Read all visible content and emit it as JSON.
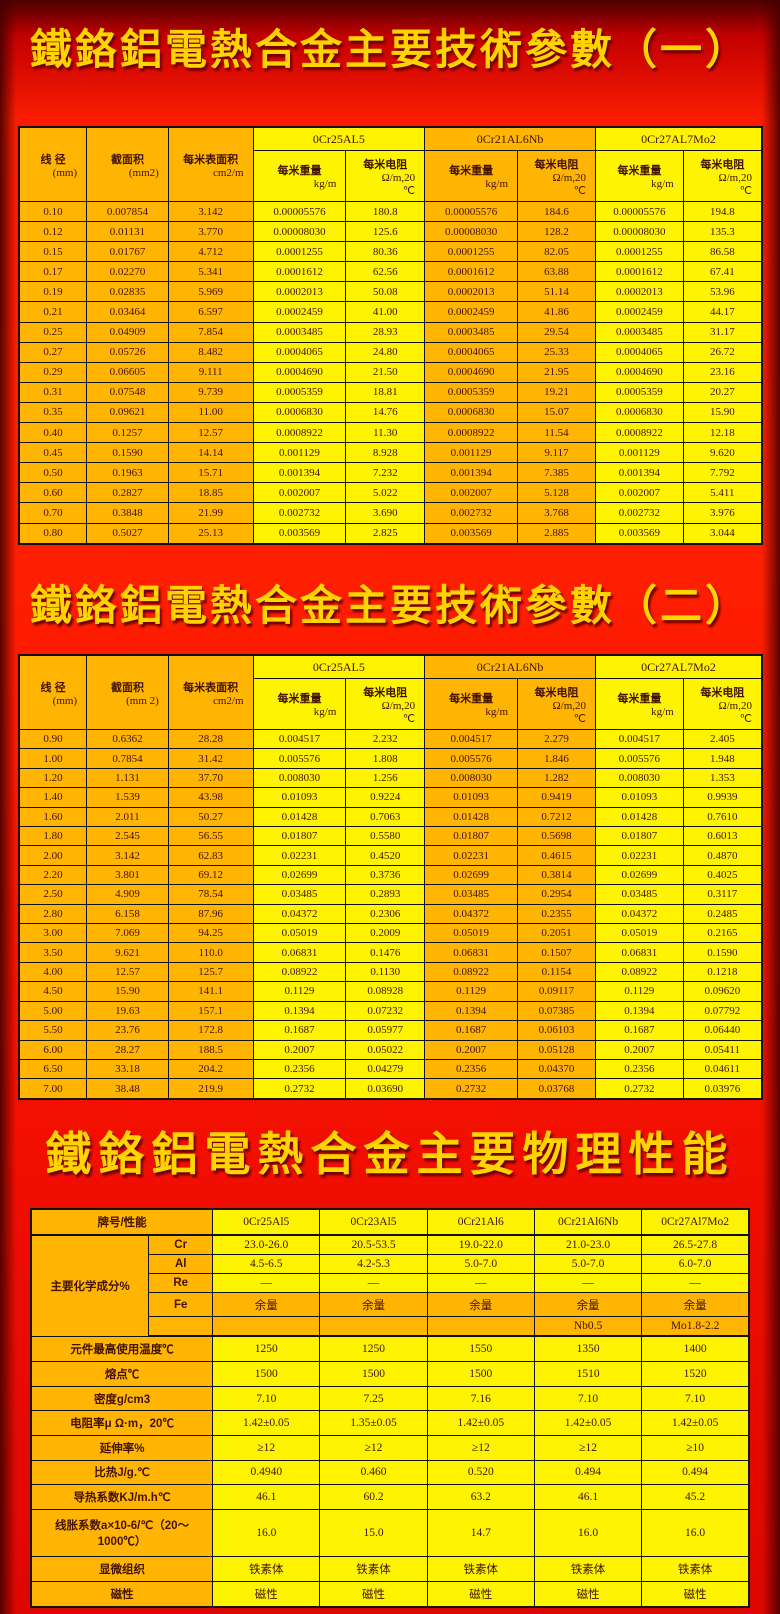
{
  "page": {
    "title1": "鐵鉻鋁電熱合金主要技術參數（一）",
    "title2": "鐵鉻鋁電熱合金主要技術參數（二）",
    "title3": "鐵鉻鋁電熱合金主要物理性能"
  },
  "colors": {
    "background_red": "#fb1c00",
    "edge_dark_red": "#4a0000",
    "cell_orange": "#ffb501",
    "cell_yellow": "#fef301",
    "title_gold": "#ffd400",
    "cell_text_dark": "#421300",
    "border_black": "#111111"
  },
  "tech_table_1": {
    "headers": {
      "diameter": "线 径",
      "diameter_unit": "(mm)",
      "area": "截面积",
      "area_unit": "(mm2)",
      "surface": "每米表面积",
      "surface_unit": "cm2/m",
      "weight": "每米重量",
      "weight_unit": "kg/m",
      "resistance": "每米电阻",
      "resistance_unit": "Ω/m,20",
      "resistance_unit2": "℃",
      "alloys": [
        "0Cr25AL5",
        "0Cr21AL6Nb",
        "0Cr27AL7Mo2"
      ]
    },
    "rows": [
      [
        "0.10",
        "0.007854",
        "3.142",
        "0.00005576",
        "180.8",
        "0.00005576",
        "184.6",
        "0.00005576",
        "194.8"
      ],
      [
        "0.12",
        "0.01131",
        "3.770",
        "0.00008030",
        "125.6",
        "0.00008030",
        "128.2",
        "0.00008030",
        "135.3"
      ],
      [
        "0.15",
        "0.01767",
        "4.712",
        "0.0001255",
        "80.36",
        "0.0001255",
        "82.05",
        "0.0001255",
        "86.58"
      ],
      [
        "0.17",
        "0.02270",
        "5.341",
        "0.0001612",
        "62.56",
        "0.0001612",
        "63.88",
        "0.0001612",
        "67.41"
      ],
      [
        "0.19",
        "0.02835",
        "5.969",
        "0.0002013",
        "50.08",
        "0.0002013",
        "51.14",
        "0.0002013",
        "53.96"
      ],
      [
        "0.21",
        "0.03464",
        "6.597",
        "0.0002459",
        "41.00",
        "0.0002459",
        "41.86",
        "0.0002459",
        "44.17"
      ],
      [
        "0.25",
        "0.04909",
        "7.854",
        "0.0003485",
        "28.93",
        "0.0003485",
        "29.54",
        "0.0003485",
        "31.17"
      ],
      [
        "0.27",
        "0.05726",
        "8.482",
        "0.0004065",
        "24.80",
        "0.0004065",
        "25.33",
        "0.0004065",
        "26.72"
      ],
      [
        "0.29",
        "0.06605",
        "9.111",
        "0.0004690",
        "21.50",
        "0.0004690",
        "21.95",
        "0.0004690",
        "23.16"
      ],
      [
        "0.31",
        "0.07548",
        "9.739",
        "0.0005359",
        "18.81",
        "0.0005359",
        "19.21",
        "0.0005359",
        "20.27"
      ],
      [
        "0.35",
        "0.09621",
        "11.00",
        "0.0006830",
        "14.76",
        "0.0006830",
        "15.07",
        "0.0006830",
        "15.90"
      ],
      [
        "0.40",
        "0.1257",
        "12.57",
        "0.0008922",
        "11.30",
        "0.0008922",
        "11.54",
        "0.0008922",
        "12.18"
      ],
      [
        "0.45",
        "0.1590",
        "14.14",
        "0.001129",
        "8.928",
        "0.001129",
        "9.117",
        "0.001129",
        "9.620"
      ],
      [
        "0.50",
        "0.1963",
        "15.71",
        "0.001394",
        "7.232",
        "0.001394",
        "7.385",
        "0.001394",
        "7.792"
      ],
      [
        "0.60",
        "0.2827",
        "18.85",
        "0.002007",
        "5.022",
        "0.002007",
        "5.128",
        "0.002007",
        "5.411"
      ],
      [
        "0.70",
        "0.3848",
        "21.99",
        "0.002732",
        "3.690",
        "0.002732",
        "3.768",
        "0.002732",
        "3.976"
      ],
      [
        "0.80",
        "0.5027",
        "25.13",
        "0.003569",
        "2.825",
        "0.003569",
        "2.885",
        "0.003569",
        "3.044"
      ]
    ]
  },
  "tech_table_2": {
    "headers": {
      "diameter": "线 径",
      "diameter_unit": "(mm)",
      "area": "截面积",
      "area_unit": "(mm 2)",
      "surface": "每米表面积",
      "surface_unit": "cm2/m",
      "weight": "每米重量",
      "weight_unit": "kg/m",
      "resistance": "每米电阻",
      "resistance_unit": "Ω/m,20",
      "resistance_unit2": "℃",
      "alloys": [
        "0Cr25AL5",
        "0Cr21AL6Nb",
        "0Cr27AL7Mo2"
      ]
    },
    "rows": [
      [
        "0.90",
        "0.6362",
        "28.28",
        "0.004517",
        "2.232",
        "0.004517",
        "2.279",
        "0.004517",
        "2.405"
      ],
      [
        "1.00",
        "0.7854",
        "31.42",
        "0.005576",
        "1.808",
        "0.005576",
        "1.846",
        "0.005576",
        "1.948"
      ],
      [
        "1.20",
        "1.131",
        "37.70",
        "0.008030",
        "1.256",
        "0.008030",
        "1.282",
        "0.008030",
        "1.353"
      ],
      [
        "1.40",
        "1.539",
        "43.98",
        "0.01093",
        "0.9224",
        "0.01093",
        "0.9419",
        "0.01093",
        "0.9939"
      ],
      [
        "1.60",
        "2.011",
        "50.27",
        "0.01428",
        "0.7063",
        "0.01428",
        "0.7212",
        "0.01428",
        "0.7610"
      ],
      [
        "1.80",
        "2.545",
        "56.55",
        "0.01807",
        "0.5580",
        "0.01807",
        "0.5698",
        "0.01807",
        "0.6013"
      ],
      [
        "2.00",
        "3.142",
        "62.83",
        "0.02231",
        "0.4520",
        "0.02231",
        "0.4615",
        "0.02231",
        "0.4870"
      ],
      [
        "2.20",
        "3.801",
        "69.12",
        "0.02699",
        "0.3736",
        "0.02699",
        "0.3814",
        "0.02699",
        "0.4025"
      ],
      [
        "2.50",
        "4.909",
        "78.54",
        "0.03485",
        "0.2893",
        "0.03485",
        "0.2954",
        "0.03485",
        "0.3117"
      ],
      [
        "2.80",
        "6.158",
        "87.96",
        "0.04372",
        "0.2306",
        "0.04372",
        "0.2355",
        "0.04372",
        "0.2485"
      ],
      [
        "3.00",
        "7.069",
        "94.25",
        "0.05019",
        "0.2009",
        "0.05019",
        "0.2051",
        "0.05019",
        "0.2165"
      ],
      [
        "3.50",
        "9.621",
        "110.0",
        "0.06831",
        "0.1476",
        "0.06831",
        "0.1507",
        "0.06831",
        "0.1590"
      ],
      [
        "4.00",
        "12.57",
        "125.7",
        "0.08922",
        "0.1130",
        "0.08922",
        "0.1154",
        "0.08922",
        "0.1218"
      ],
      [
        "4.50",
        "15.90",
        "141.1",
        "0.1129",
        "0.08928",
        "0.1129",
        "0.09117",
        "0.1129",
        "0.09620"
      ],
      [
        "5.00",
        "19.63",
        "157.1",
        "0.1394",
        "0.07232",
        "0.1394",
        "0.07385",
        "0.1394",
        "0.07792"
      ],
      [
        "5.50",
        "23.76",
        "172.8",
        "0.1687",
        "0.05977",
        "0.1687",
        "0.06103",
        "0.1687",
        "0.06440"
      ],
      [
        "6.00",
        "28.27",
        "188.5",
        "0.2007",
        "0.05022",
        "0.2007",
        "0.05128",
        "0.2007",
        "0.05411"
      ],
      [
        "6.50",
        "33.18",
        "204.2",
        "0.2356",
        "0.04279",
        "0.2356",
        "0.04370",
        "0.2356",
        "0.04611"
      ],
      [
        "7.00",
        "38.48",
        "219.9",
        "0.2732",
        "0.03690",
        "0.2732",
        "0.03768",
        "0.2732",
        "0.03976"
      ]
    ]
  },
  "props_table": {
    "corner_label": "牌号/性能",
    "alloys": [
      "0Cr25Al5",
      "0Cr23Al5",
      "0Cr21Al6",
      "0Cr21Al6Nb",
      "0Cr27Al7Mo2"
    ],
    "chem_label": "主要化学成分%",
    "chem_rows": [
      {
        "sub": "Cr",
        "values": [
          "23.0-26.0",
          "20.5-53.5",
          "19.0-22.0",
          "21.0-23.0",
          "26.5-27.8"
        ]
      },
      {
        "sub": "Al",
        "values": [
          "4.5-6.5",
          "4.2-5.3",
          "5.0-7.0",
          "5.0-7.0",
          "6.0-7.0"
        ]
      },
      {
        "sub": "Re",
        "values": [
          "—",
          "—",
          "—",
          "—",
          "—"
        ]
      },
      {
        "sub": "Fe",
        "values": [
          "余量",
          "余量",
          "余量",
          "余量",
          "余量"
        ]
      },
      {
        "sub": "",
        "values": [
          "",
          "",
          "",
          "Nb0.5",
          "Mo1.8-2.2"
        ]
      }
    ],
    "property_rows": [
      {
        "label": "元件最高使用温度℃",
        "values": [
          "1250",
          "1250",
          "1550",
          "1350",
          "1400"
        ]
      },
      {
        "label": "熔点℃",
        "values": [
          "1500",
          "1500",
          "1500",
          "1510",
          "1520"
        ]
      },
      {
        "label": "密度g/cm3",
        "values": [
          "7.10",
          "7.25",
          "7.16",
          "7.10",
          "7.10"
        ]
      },
      {
        "label": "电阻率μ Ω·m，20℃",
        "values": [
          "1.42±0.05",
          "1.35±0.05",
          "1.42±0.05",
          "1.42±0.05",
          "1.42±0.05"
        ]
      },
      {
        "label": "延伸率%",
        "values": [
          "≥12",
          "≥12",
          "≥12",
          "≥12",
          "≥10"
        ]
      },
      {
        "label": "比热J/g.℃",
        "values": [
          "0.4940",
          "0.460",
          "0.520",
          "0.494",
          "0.494"
        ]
      },
      {
        "label": "导热系数KJ/m.h℃",
        "values": [
          "46.1",
          "60.2",
          "63.2",
          "46.1",
          "45.2"
        ]
      },
      {
        "label": "线胀系数a×10-6/℃（20～1000℃）",
        "values": [
          "16.0",
          "15.0",
          "14.7",
          "16.0",
          "16.0"
        ]
      },
      {
        "label": "显微组织",
        "values": [
          "铁素体",
          "铁素体",
          "铁素体",
          "铁素体",
          "铁素体"
        ]
      },
      {
        "label": "磁性",
        "values": [
          "磁性",
          "磁性",
          "磁性",
          "磁性",
          "磁性"
        ]
      }
    ]
  }
}
